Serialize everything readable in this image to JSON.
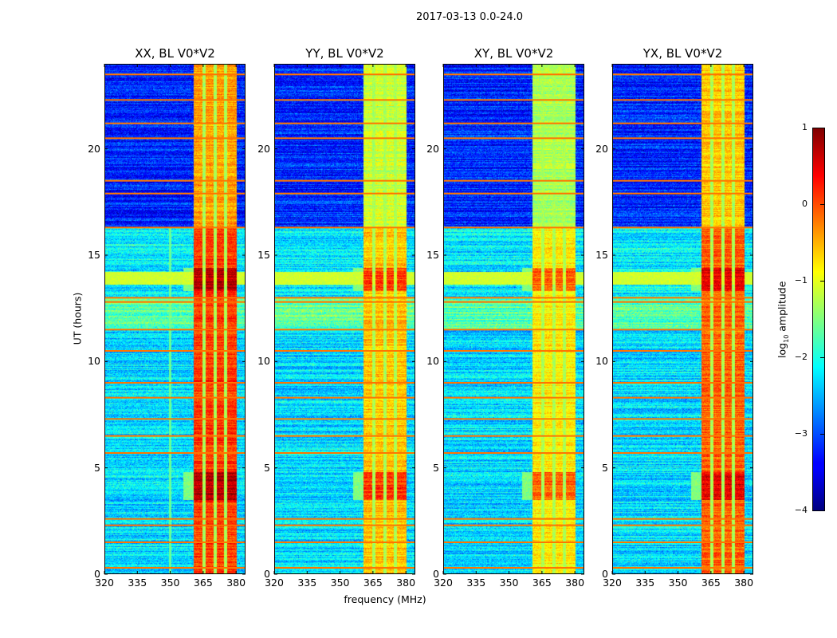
{
  "chart_data": {
    "type": "heatmap",
    "title": "2017-03-13 0.0-24.0",
    "xlabel": "frequency (MHz)",
    "ylabel": "UT (hours)",
    "xlim": [
      320,
      384.3
    ],
    "ylim": [
      0,
      24
    ],
    "xticks": [
      "320",
      "335",
      "350",
      "365",
      "380"
    ],
    "xtick_values": [
      320,
      335,
      350,
      365,
      380
    ],
    "yticks": [
      "0",
      "5",
      "10",
      "15",
      "20"
    ],
    "ytick_values": [
      0,
      5,
      10,
      15,
      20
    ],
    "colorbar": {
      "label_prefix": "log",
      "label_sub": "10",
      "label_suffix": " amplitude",
      "range": [
        -4,
        1
      ],
      "ticks": [
        "1",
        "0",
        "−1",
        "−2",
        "−3",
        "−4"
      ],
      "tick_values": [
        1,
        0,
        -1,
        -2,
        -3,
        -4
      ],
      "colormap": "jet"
    },
    "panels": [
      {
        "title": "XX, BL V0*V2",
        "band_level": 0.1,
        "strong_boost": 0.6,
        "vline_350": true
      },
      {
        "title": "YY, BL V0*V2",
        "band_level": -0.6,
        "strong_boost": 0.7,
        "vline_350": false
      },
      {
        "title": "XY, BL V0*V2",
        "band_level": -0.8,
        "strong_boost": 0.7,
        "vline_350": false
      },
      {
        "title": "YX, BL V0*V2",
        "band_level": -0.1,
        "strong_boost": 0.6,
        "vline_350": false
      }
    ],
    "band_mhz": [
      360.7,
      380.3
    ],
    "band_gaps_mhz": [
      365.4,
      370.5,
      375.2
    ],
    "background_segments": [
      {
        "t0": 0,
        "t1": 11.5,
        "level": -2.3
      },
      {
        "t0": 11.5,
        "t1": 13.0,
        "level": -1.7
      },
      {
        "t0": 13.0,
        "t1": 16.3,
        "level": -2.2
      },
      {
        "t0": 16.3,
        "t1": 24,
        "level": -3.2
      }
    ],
    "strong_intervals_hours": [
      [
        13.3,
        14.4
      ],
      [
        3.5,
        4.8
      ]
    ],
    "rfi_lines_hours": [
      0.3,
      1.5,
      2.3,
      2.6,
      5.7,
      6.5,
      7.3,
      8.3,
      9.0,
      10.5,
      11.5,
      12.8,
      13.0,
      16.3,
      17.9,
      18.5,
      20.5,
      21.2,
      22.3,
      23.5
    ],
    "rfi_level": -0.2
  }
}
